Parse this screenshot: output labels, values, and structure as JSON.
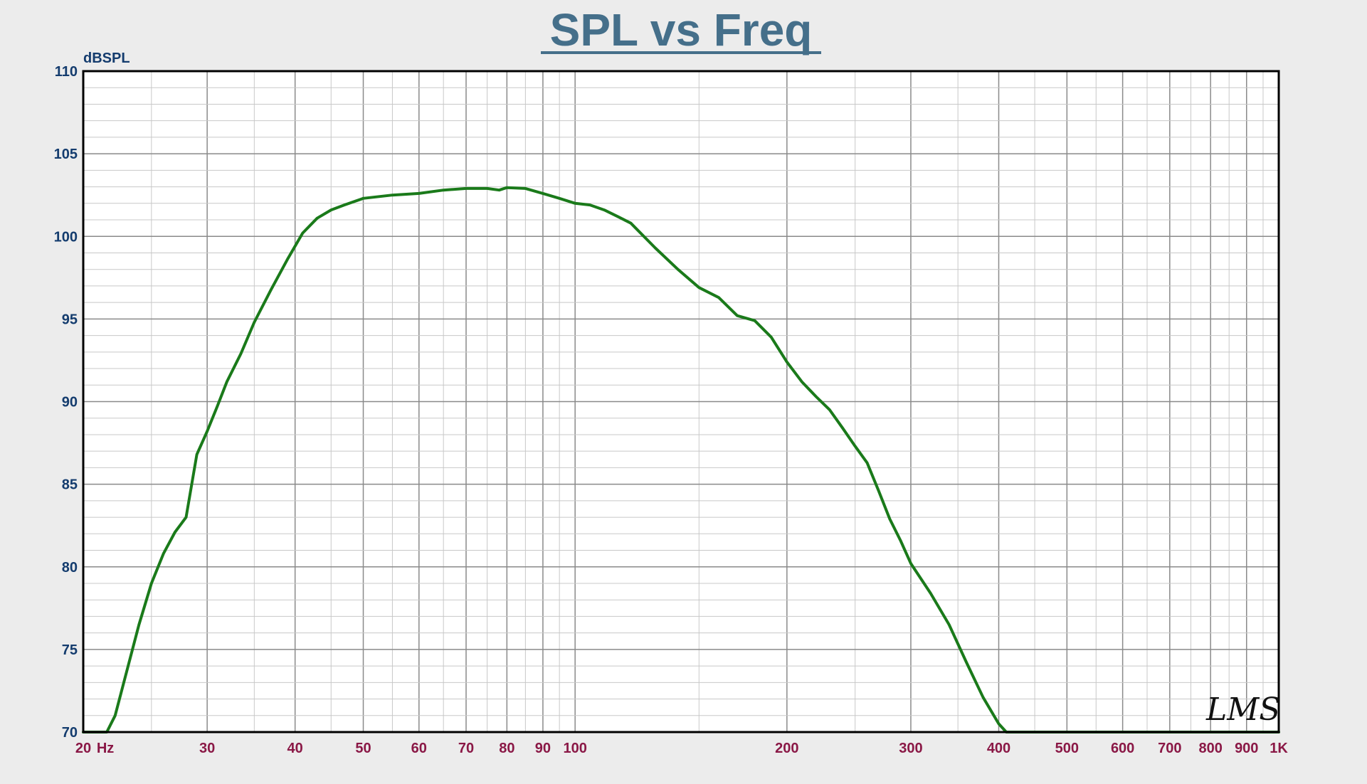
{
  "chart_data": {
    "type": "line",
    "title": "SPL vs Freq",
    "ylabel": "dBSPL",
    "xlabel": "",
    "x_scale": "log",
    "xlim": [
      20,
      1000
    ],
    "ylim": [
      70,
      110
    ],
    "grid": true,
    "x_ticks": [
      {
        "value": 20,
        "label": "20"
      },
      {
        "value": 21.5,
        "label": "Hz"
      },
      {
        "value": 30,
        "label": "30"
      },
      {
        "value": 40,
        "label": "40"
      },
      {
        "value": 50,
        "label": "50"
      },
      {
        "value": 60,
        "label": "60"
      },
      {
        "value": 70,
        "label": "70"
      },
      {
        "value": 80,
        "label": "80"
      },
      {
        "value": 90,
        "label": "90"
      },
      {
        "value": 100,
        "label": "100"
      },
      {
        "value": 200,
        "label": "200"
      },
      {
        "value": 300,
        "label": "300"
      },
      {
        "value": 400,
        "label": "400"
      },
      {
        "value": 500,
        "label": "500"
      },
      {
        "value": 600,
        "label": "600"
      },
      {
        "value": 700,
        "label": "700"
      },
      {
        "value": 800,
        "label": "800"
      },
      {
        "value": 900,
        "label": "900"
      },
      {
        "value": 1000,
        "label": "1K"
      }
    ],
    "y_ticks": [
      70,
      75,
      80,
      85,
      90,
      95,
      100,
      105,
      110
    ],
    "series": [
      {
        "color": "#1a7a1a",
        "x": [
          20,
          21.6,
          22.2,
          23,
          24,
          25,
          26,
          27,
          28,
          29,
          30,
          31,
          32,
          33.5,
          35,
          37,
          39,
          41,
          43,
          45,
          47,
          50,
          55,
          60,
          65,
          70,
          75,
          78,
          80,
          85,
          90,
          95,
          100,
          105,
          110,
          115,
          120,
          130,
          140,
          150,
          160,
          170,
          180,
          190,
          200,
          210,
          220,
          230,
          240,
          250,
          260,
          270,
          280,
          290,
          300,
          320,
          340,
          360,
          380,
          400,
          410,
          500,
          600,
          700,
          800,
          900,
          1000
        ],
        "y": [
          70,
          70,
          71,
          73.5,
          76.5,
          79,
          80.8,
          82.1,
          83,
          86.8,
          88.2,
          89.7,
          91.2,
          92.9,
          94.8,
          96.8,
          98.6,
          100.2,
          101.1,
          101.6,
          101.9,
          102.3,
          102.5,
          102.6,
          102.8,
          102.9,
          102.9,
          102.8,
          102.95,
          102.9,
          102.6,
          102.3,
          102.0,
          101.9,
          101.6,
          101.2,
          100.8,
          99.3,
          98.0,
          96.9,
          96.3,
          95.2,
          94.9,
          93.9,
          92.4,
          91.2,
          90.3,
          89.5,
          88.4,
          87.3,
          86.3,
          84.6,
          82.9,
          81.6,
          80.2,
          78.4,
          76.5,
          74.2,
          72.1,
          70.5,
          70,
          70,
          70,
          70,
          70,
          70,
          70
        ]
      }
    ],
    "watermark": "LMS"
  }
}
